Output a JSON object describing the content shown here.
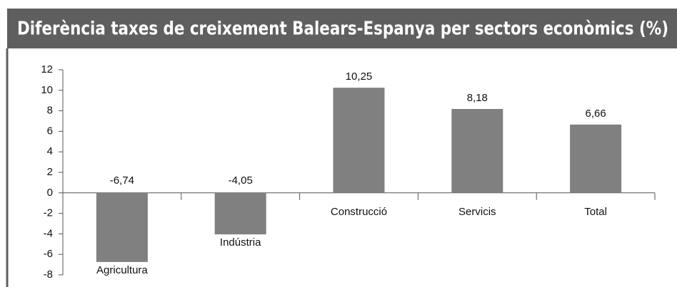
{
  "chart_data": {
    "type": "bar",
    "title": "Diferència taxes de creixement Balears-Espanya per sectors econòmics (%)",
    "categories": [
      "Agricultura",
      "Indústria",
      "Construcció",
      "Servicis",
      "Total"
    ],
    "values": [
      -6.74,
      -4.05,
      10.25,
      8.18,
      6.66
    ],
    "value_labels": [
      "-6,74",
      "-4,05",
      "10,25",
      "8,18",
      "6,66"
    ],
    "color": "#808080",
    "ylim": [
      -8,
      12
    ],
    "yticks": [
      -8,
      -6,
      -4,
      -2,
      0,
      2,
      4,
      6,
      8,
      10,
      12
    ]
  }
}
